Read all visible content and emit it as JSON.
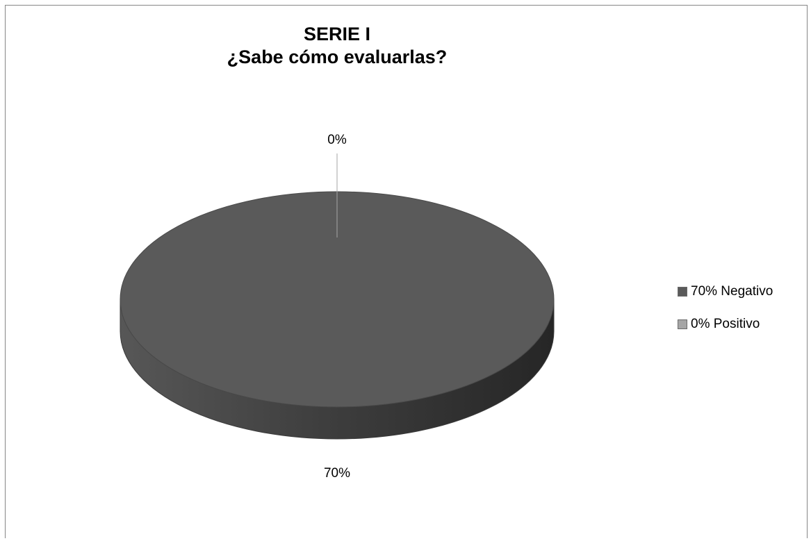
{
  "chart_data": {
    "type": "pie",
    "title": [
      "SERIE I",
      "¿Sabe cómo evaluarlas?"
    ],
    "slices": [
      {
        "label": "70% Negativo",
        "value": 70,
        "data_label": "70%",
        "color": "#5a5a5a"
      },
      {
        "label": "0% Positivo",
        "value": 0,
        "data_label": "0%",
        "color": "#a6a6a6"
      }
    ],
    "legend_position": "right",
    "style": "3d"
  }
}
